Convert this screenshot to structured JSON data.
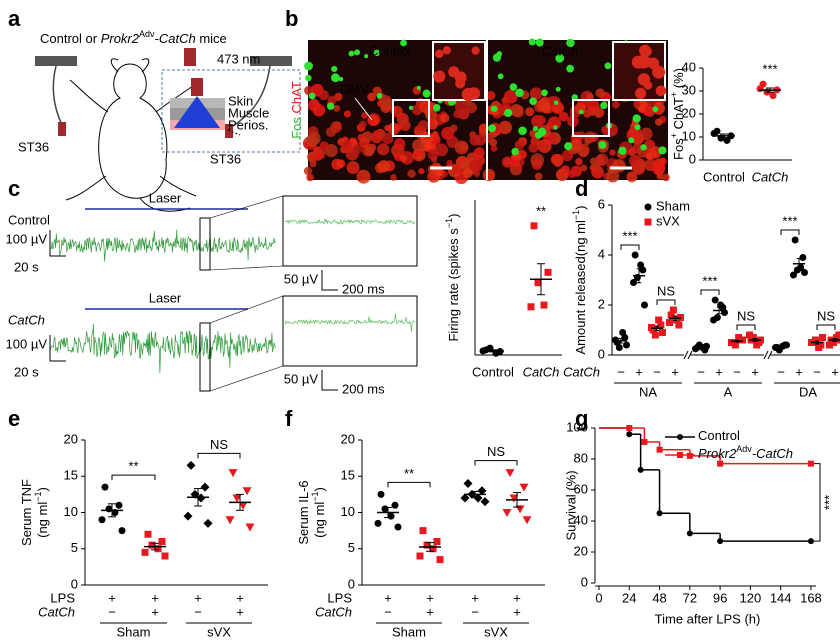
{
  "panel_labels": [
    "a",
    "b",
    "c",
    "d",
    "e",
    "f",
    "g"
  ],
  "diagram": {
    "title": [
      "Control or ",
      "Prokr2",
      "Adv",
      "-CatCh",
      " mice"
    ],
    "laser": "473 nm",
    "layers": [
      "Skin",
      "Muscle",
      "Perios."
    ],
    "sites": [
      "ST36",
      "ST36"
    ]
  },
  "images": {
    "columns": [
      "Control",
      "CatCh"
    ],
    "region": "DMV",
    "stains": [
      "Fos",
      "ChAT"
    ]
  },
  "traces": [
    {
      "condition": "Control",
      "laser": "Laser",
      "amplitude": "100 µV",
      "duration": "20 s",
      "zoom_amplitude": "50 µV",
      "zoom_duration": "200 ms"
    },
    {
      "condition": "CatCh",
      "laser": "Laser",
      "amplitude": "100 µV",
      "duration": "20 s",
      "zoom_amplitude": "50 µV",
      "zoom_duration": "200 ms"
    }
  ],
  "chart_data": [
    {
      "type": "dot",
      "ylabel": [
        "Fos",
        "+",
        " ChAT",
        "+",
        " (%)"
      ],
      "categories": [
        "Control",
        "CatCh"
      ],
      "ylim": [
        0,
        40
      ],
      "yticks": [
        0,
        10,
        20,
        30,
        40
      ],
      "columns": [
        {
          "color": "#000000",
          "marker": "circle",
          "points": [
            12.5,
            10.5,
            9.5,
            8.5,
            11.5
          ],
          "mean": 10.5,
          "sem": 0.8
        },
        {
          "color": "#e8191e",
          "marker": "circle",
          "points": [
            33,
            30.5,
            29.5,
            28,
            31
          ],
          "mean": 30.4,
          "sem": 0.9
        }
      ],
      "annotations": [
        "***"
      ]
    },
    {
      "type": "dot",
      "ylabel": [
        "Firing rate (spikes s",
        "−1",
        ")"
      ],
      "categories": [
        "Control",
        "CatCh"
      ],
      "ylim": [
        0,
        4.5
      ],
      "columns": [
        {
          "color": "#000000",
          "marker": "circle",
          "points": [
            0.15,
            0.1,
            0.2,
            0.05,
            0.12
          ],
          "mean": 0.12,
          "sem": 0.03
        },
        {
          "color": "#e8191e",
          "marker": "square",
          "points": [
            3.75,
            2.4,
            2.1,
            1.45,
            1.4
          ],
          "mean": 2.2,
          "sem": 0.45
        }
      ],
      "annotations": [
        "**"
      ]
    },
    {
      "type": "grouped",
      "ylabel": [
        "Amount released",
        "(ng ml",
        "−1",
        ")"
      ],
      "ylim": [
        0,
        6
      ],
      "yticks": [
        0,
        2,
        4,
        6
      ],
      "groups": [
        "NA",
        "A",
        "DA"
      ],
      "row_label": "CatCh",
      "signs": [
        "−",
        "+",
        "−",
        "+",
        "−",
        "+",
        "−",
        "+",
        "−",
        "+",
        "−",
        "+"
      ],
      "series": [
        {
          "name": "Sham",
          "color": "#000000",
          "marker": "circle",
          "columns": [
            {
              "points": [
                0.5,
                0.7,
                0.3,
                0.9,
                0.6,
                0.4
              ],
              "mean": 0.57,
              "sem": 0.09
            },
            {
              "points": [
                4.0,
                3.4,
                3.1,
                3.6,
                2.9,
                2.0
              ],
              "mean": 3.17,
              "sem": 0.28
            },
            {
              "points": [
                0.3,
                0.2,
                0.4,
                0.3,
                0.25,
                0.35
              ],
              "mean": 0.3,
              "sem": 0.03
            },
            {
              "points": [
                2.2,
                1.9,
                1.5,
                2.0,
                1.4,
                1.7
              ],
              "mean": 1.78,
              "sem": 0.13
            },
            {
              "points": [
                0.3,
                0.4,
                0.2,
                0.35,
                0.3,
                0.4
              ],
              "mean": 0.33,
              "sem": 0.03
            },
            {
              "points": [
                4.6,
                3.9,
                3.4,
                3.5,
                3.2,
                3.3
              ],
              "mean": 3.65,
              "sem": 0.21
            }
          ]
        },
        {
          "name": "sVX",
          "color": "#e8191e",
          "marker": "square",
          "columns": [
            {
              "points": [
                1.0,
                1.2,
                0.8,
                1.4,
                1.1,
                0.9
              ],
              "mean": 1.07,
              "sem": 0.09
            },
            {
              "points": [
                1.6,
                1.2,
                1.8,
                1.4,
                1.3,
                1.5
              ],
              "mean": 1.47,
              "sem": 0.09
            },
            {
              "points": [
                0.5,
                0.6,
                0.4,
                0.7,
                0.5,
                0.6
              ],
              "mean": 0.55,
              "sem": 0.04
            },
            {
              "points": [
                0.6,
                0.5,
                0.7,
                0.4,
                0.8,
                0.6
              ],
              "mean": 0.6,
              "sem": 0.06
            },
            {
              "points": [
                0.5,
                0.4,
                0.6,
                0.3,
                0.5,
                0.7
              ],
              "mean": 0.5,
              "sem": 0.06
            },
            {
              "points": [
                0.6,
                0.8,
                0.5,
                0.7,
                0.4,
                0.6
              ],
              "mean": 0.6,
              "sem": 0.06
            }
          ]
        }
      ],
      "annotations": [
        "***",
        "NS",
        "***",
        "NS",
        "***",
        "NS"
      ]
    },
    {
      "type": "dot4",
      "ylabel": [
        "Serum TNF",
        "(ng ml",
        "−1",
        ")"
      ],
      "ylim": [
        0,
        20
      ],
      "yticks": [
        0,
        5,
        10,
        15,
        20
      ],
      "rows": [
        {
          "label": "LPS",
          "signs": [
            "+",
            "+",
            "+",
            "+"
          ]
        },
        {
          "label": "CatCh",
          "signs": [
            "−",
            "+",
            "−",
            "+"
          ]
        }
      ],
      "groups": [
        "Sham",
        "sVX"
      ],
      "columns": [
        {
          "color": "#000000",
          "marker": "circle",
          "points": [
            13.5,
            11,
            10.5,
            10,
            9,
            7.5
          ],
          "mean": 10.3,
          "sem": 0.9
        },
        {
          "color": "#e8191e",
          "marker": "square",
          "points": [
            7,
            6,
            5.5,
            5,
            4.5,
            4
          ],
          "mean": 5.3,
          "sem": 0.45
        },
        {
          "color": "#000000",
          "marker": "diamond",
          "points": [
            16.5,
            13.5,
            12.5,
            12,
            9.5,
            8.5
          ],
          "mean": 12.1,
          "sem": 1.2
        },
        {
          "color": "#e8191e",
          "marker": "triangle-down",
          "points": [
            15.5,
            13,
            12,
            11,
            9,
            8
          ],
          "mean": 11.4,
          "sem": 1.1
        }
      ],
      "annotations": [
        "**",
        "NS"
      ]
    },
    {
      "type": "dot4",
      "ylabel": [
        "Serum IL-6",
        "(ng ml",
        "−1",
        ")"
      ],
      "ylim": [
        0,
        20
      ],
      "yticks": [
        0,
        5,
        10,
        15,
        20
      ],
      "rows": [
        {
          "label": "LPS",
          "signs": [
            "+",
            "+",
            "+",
            "+"
          ]
        },
        {
          "label": "CatCh",
          "signs": [
            "−",
            "+",
            "−",
            "+"
          ]
        }
      ],
      "groups": [
        "Sham",
        "sVX"
      ],
      "columns": [
        {
          "color": "#000000",
          "marker": "circle",
          "points": [
            12.5,
            11,
            10.5,
            9.5,
            8.5,
            8
          ],
          "mean": 10,
          "sem": 0.7
        },
        {
          "color": "#e8191e",
          "marker": "square",
          "points": [
            7.5,
            6,
            5.5,
            5,
            4,
            3.5
          ],
          "mean": 5.25,
          "sem": 0.6
        },
        {
          "color": "#000000",
          "marker": "diamond",
          "points": [
            14,
            13,
            12.5,
            12,
            12,
            11.5
          ],
          "mean": 12.5,
          "sem": 0.4
        },
        {
          "color": "#e8191e",
          "marker": "triangle-down",
          "points": [
            15.5,
            13.5,
            12,
            10.5,
            10,
            9
          ],
          "mean": 11.75,
          "sem": 1.0
        }
      ],
      "annotations": [
        "**",
        "NS"
      ]
    },
    {
      "type": "step",
      "xlabel": "Time after LPS (h)",
      "ylabel": "Survival (%)",
      "xlim": [
        0,
        172
      ],
      "xticks": [
        0,
        24,
        48,
        72,
        96,
        120,
        144,
        168
      ],
      "ylim": [
        0,
        100
      ],
      "yticks": [
        0,
        20,
        40,
        60,
        80,
        100
      ],
      "series": [
        {
          "name": [
            "Control"
          ],
          "color": "#000000",
          "marker": "circle",
          "x": [
            0,
            24,
            33,
            48,
            72,
            96,
            168
          ],
          "values": [
            100,
            96,
            73,
            45,
            32,
            27,
            27
          ]
        },
        {
          "name": [
            "Prokr2",
            "Adv",
            "-CatCh"
          ],
          "color": "#e8191e",
          "marker": "square",
          "x": [
            0,
            24,
            36,
            48,
            72,
            96,
            168
          ],
          "values": [
            100,
            100,
            91,
            86,
            82,
            77,
            77
          ]
        }
      ],
      "annotations": [
        "***"
      ]
    }
  ]
}
